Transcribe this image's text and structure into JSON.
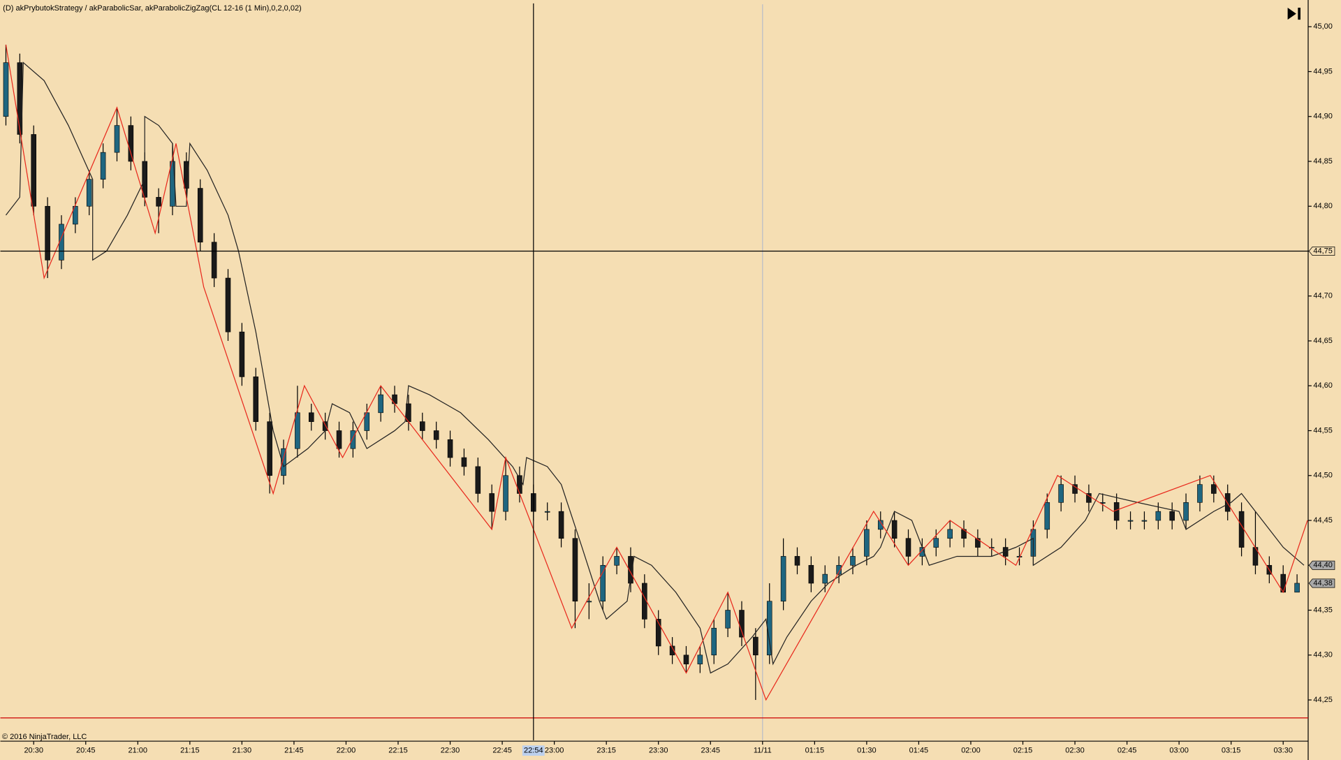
{
  "chart_data": {
    "type": "candlestick",
    "title": "(D) akPrybutokStrategy / akParabolicSar, akParabolicZigZag(CL 12-16 (1 Min),0,2,0,02)",
    "footer": "© 2016 NinjaTrader, LLC",
    "background": "#f5deb3",
    "up_color": "#1f6680",
    "down_color": "#1a1a1a",
    "xlim": [
      -9.6,
      367.2
    ],
    "ylim": [
      44.205,
      45.025
    ],
    "xticks": [
      {
        "value": 0,
        "label": "20:30"
      },
      {
        "value": 15,
        "label": "20:45"
      },
      {
        "value": 30,
        "label": "21:00"
      },
      {
        "value": 45,
        "label": "21:15"
      },
      {
        "value": 60,
        "label": "21:30"
      },
      {
        "value": 75,
        "label": "21:45"
      },
      {
        "value": 90,
        "label": "22:00"
      },
      {
        "value": 105,
        "label": "22:15"
      },
      {
        "value": 120,
        "label": "22:30"
      },
      {
        "value": 135,
        "label": "22:45"
      },
      {
        "value": 150,
        "label": "23:00"
      },
      {
        "value": 165,
        "label": "23:15"
      },
      {
        "value": 180,
        "label": "23:30"
      },
      {
        "value": 195,
        "label": "23:45"
      },
      {
        "value": 210,
        "label": "11/11"
      },
      {
        "value": 225,
        "label": "01:15"
      },
      {
        "value": 240,
        "label": "01:30"
      },
      {
        "value": 255,
        "label": "01:45"
      },
      {
        "value": 270,
        "label": "02:00"
      },
      {
        "value": 285,
        "label": "02:15"
      },
      {
        "value": 300,
        "label": "02:30"
      },
      {
        "value": 315,
        "label": "02:45"
      },
      {
        "value": 330,
        "label": "03:00"
      },
      {
        "value": 345,
        "label": "03:15"
      },
      {
        "value": 360,
        "label": "03:30"
      }
    ],
    "yticks": [
      {
        "value": 44.25,
        "label": "44,25"
      },
      {
        "value": 44.3,
        "label": "44,30"
      },
      {
        "value": 44.35,
        "label": "44,35"
      },
      {
        "value": 44.4,
        "label": "44,40"
      },
      {
        "value": 44.45,
        "label": "44,45"
      },
      {
        "value": 44.5,
        "label": "44,50"
      },
      {
        "value": 44.55,
        "label": "44,55"
      },
      {
        "value": 44.6,
        "label": "44,60"
      },
      {
        "value": 44.65,
        "label": "44,65"
      },
      {
        "value": 44.7,
        "label": "44,70"
      },
      {
        "value": 44.75,
        "label": "44,75"
      },
      {
        "value": 44.8,
        "label": "44,80"
      },
      {
        "value": 44.85,
        "label": "44,85"
      },
      {
        "value": 44.9,
        "label": "44,90"
      },
      {
        "value": 44.95,
        "label": "44,95"
      },
      {
        "value": 45.0,
        "label": "45,00"
      }
    ],
    "crosshair_x": {
      "value": 144,
      "label": "22:54"
    },
    "crosshair_y": {
      "value": 44.75,
      "label": "44,75"
    },
    "price_markers": [
      {
        "value": 44.4,
        "label": "44,40"
      },
      {
        "value": 44.38,
        "label": "44,38"
      }
    ],
    "session_break": 210,
    "stop_line": {
      "value": 44.23,
      "color": "#cc0000"
    },
    "candles": {
      "x": [
        -8,
        -4,
        0,
        4,
        8,
        12,
        16,
        20,
        24,
        28,
        32,
        36,
        40,
        44,
        48,
        52,
        56,
        60,
        64,
        68,
        72,
        76,
        80,
        84,
        88,
        92,
        96,
        100,
        104,
        108,
        112,
        116,
        120,
        124,
        128,
        132,
        136,
        140,
        144,
        148,
        152,
        156,
        160,
        164,
        168,
        172,
        176,
        180,
        184,
        188,
        192,
        196,
        200,
        204,
        208,
        212,
        216,
        220,
        224,
        228,
        232,
        236,
        240,
        244,
        248,
        252,
        256,
        260,
        264,
        268,
        272,
        276,
        280,
        284,
        288,
        292,
        296,
        300,
        304,
        308,
        312,
        316,
        320,
        324,
        328,
        332,
        336,
        340,
        344,
        348,
        352,
        356,
        360,
        364
      ],
      "open": [
        44.9,
        44.96,
        44.88,
        44.8,
        44.74,
        44.78,
        44.8,
        44.83,
        44.86,
        44.89,
        44.85,
        44.81,
        44.8,
        44.85,
        44.82,
        44.76,
        44.72,
        44.66,
        44.61,
        44.56,
        44.5,
        44.53,
        44.57,
        44.56,
        44.55,
        44.53,
        44.55,
        44.57,
        44.59,
        44.58,
        44.56,
        44.55,
        44.54,
        44.52,
        44.51,
        44.48,
        44.46,
        44.5,
        44.48,
        44.46,
        44.46,
        44.43,
        44.36,
        44.36,
        44.4,
        44.41,
        44.38,
        44.34,
        44.31,
        44.3,
        44.29,
        44.3,
        44.33,
        44.35,
        44.32,
        44.3,
        44.36,
        44.41,
        44.4,
        44.38,
        44.39,
        44.4,
        44.41,
        44.44,
        44.45,
        44.43,
        44.41,
        44.42,
        44.43,
        44.44,
        44.43,
        44.42,
        44.42,
        44.41,
        44.41,
        44.44,
        44.47,
        44.49,
        44.48,
        44.47,
        44.47,
        44.45,
        44.45,
        44.45,
        44.46,
        44.45,
        44.47,
        44.49,
        44.48,
        44.46,
        44.42,
        44.4,
        44.39,
        44.37
      ],
      "close": [
        44.96,
        44.88,
        44.8,
        44.74,
        44.78,
        44.8,
        44.83,
        44.86,
        44.89,
        44.85,
        44.81,
        44.8,
        44.85,
        44.82,
        44.76,
        44.72,
        44.66,
        44.61,
        44.56,
        44.5,
        44.53,
        44.57,
        44.56,
        44.55,
        44.53,
        44.55,
        44.57,
        44.59,
        44.58,
        44.56,
        44.55,
        44.54,
        44.52,
        44.51,
        44.48,
        44.46,
        44.5,
        44.48,
        44.46,
        44.46,
        44.43,
        44.36,
        44.36,
        44.4,
        44.41,
        44.38,
        44.34,
        44.31,
        44.3,
        44.29,
        44.3,
        44.33,
        44.35,
        44.32,
        44.3,
        44.36,
        44.41,
        44.4,
        44.38,
        44.39,
        44.4,
        44.41,
        44.44,
        44.45,
        44.43,
        44.41,
        44.42,
        44.43,
        44.44,
        44.43,
        44.42,
        44.42,
        44.41,
        44.41,
        44.44,
        44.47,
        44.49,
        44.48,
        44.47,
        44.47,
        44.45,
        44.45,
        44.45,
        44.46,
        44.45,
        44.47,
        44.49,
        44.48,
        44.46,
        44.42,
        44.4,
        44.39,
        44.37,
        44.38
      ],
      "high": [
        44.98,
        44.97,
        44.89,
        44.81,
        44.79,
        44.81,
        44.84,
        44.87,
        44.91,
        44.9,
        44.86,
        44.82,
        44.87,
        44.86,
        44.83,
        44.77,
        44.73,
        44.67,
        44.62,
        44.57,
        44.54,
        44.6,
        44.58,
        44.57,
        44.56,
        44.56,
        44.58,
        44.6,
        44.6,
        44.59,
        44.57,
        44.56,
        44.55,
        44.53,
        44.52,
        44.49,
        44.52,
        44.51,
        44.49,
        44.47,
        44.47,
        44.44,
        44.38,
        44.41,
        44.42,
        44.42,
        44.39,
        44.35,
        44.32,
        44.31,
        44.31,
        44.34,
        44.37,
        44.36,
        44.33,
        44.38,
        44.43,
        44.42,
        44.41,
        44.4,
        44.41,
        44.42,
        44.45,
        44.46,
        44.46,
        44.44,
        44.43,
        44.44,
        44.45,
        44.45,
        44.44,
        44.43,
        44.43,
        44.42,
        44.45,
        44.48,
        44.5,
        44.5,
        44.49,
        44.48,
        44.48,
        44.46,
        44.46,
        44.47,
        44.47,
        44.48,
        44.5,
        44.5,
        44.49,
        44.47,
        44.46,
        44.41,
        44.4,
        44.39
      ],
      "low": [
        44.89,
        44.87,
        44.79,
        44.72,
        44.73,
        44.77,
        44.79,
        44.82,
        44.85,
        44.84,
        44.8,
        44.77,
        44.79,
        44.81,
        44.75,
        44.71,
        44.65,
        44.6,
        44.55,
        44.48,
        44.49,
        44.52,
        44.55,
        44.54,
        44.52,
        44.52,
        44.54,
        44.56,
        44.57,
        44.55,
        44.54,
        44.53,
        44.51,
        44.5,
        44.47,
        44.44,
        44.45,
        44.47,
        44.45,
        44.45,
        44.42,
        44.33,
        44.34,
        44.35,
        44.39,
        44.37,
        44.33,
        44.3,
        44.29,
        44.28,
        44.28,
        44.29,
        44.32,
        44.31,
        44.25,
        44.29,
        44.35,
        44.39,
        44.37,
        44.37,
        44.38,
        44.39,
        44.4,
        44.43,
        44.42,
        44.4,
        44.4,
        44.41,
        44.42,
        44.42,
        44.41,
        44.41,
        44.4,
        44.4,
        44.4,
        44.43,
        44.46,
        44.47,
        44.46,
        44.46,
        44.44,
        44.44,
        44.44,
        44.44,
        44.44,
        44.44,
        44.46,
        44.47,
        44.45,
        44.41,
        44.39,
        44.38,
        44.37,
        44.37
      ]
    },
    "zigzag": {
      "color": "#e8281c",
      "x": [
        -8,
        3,
        24,
        35,
        41,
        49,
        69,
        78,
        89,
        100,
        132,
        136,
        155,
        168,
        188,
        200,
        211,
        242,
        252,
        264,
        283,
        295,
        311,
        339,
        360,
        367
      ],
      "values": [
        44.98,
        44.72,
        44.91,
        44.77,
        44.87,
        44.71,
        44.48,
        44.6,
        44.52,
        44.6,
        44.44,
        44.52,
        44.33,
        44.42,
        44.28,
        44.37,
        44.25,
        44.46,
        44.4,
        44.45,
        44.4,
        44.5,
        44.46,
        44.5,
        44.37,
        44.45
      ]
    },
    "sar": {
      "color": "#222222",
      "x": [
        -8,
        -4,
        -3,
        3,
        10,
        17,
        17,
        21,
        27,
        32,
        32,
        36,
        40,
        41,
        44,
        45,
        50,
        56,
        59,
        64,
        69,
        72,
        79,
        84,
        86,
        91,
        96,
        104,
        107,
        108,
        114,
        123,
        131,
        138,
        141,
        142,
        148,
        152,
        158,
        163,
        165,
        171,
        173,
        178,
        185,
        192,
        195,
        200,
        207,
        211,
        213,
        217,
        224,
        229,
        237,
        242,
        244,
        248,
        253,
        256,
        258,
        266,
        276,
        283,
        288,
        288,
        296,
        303,
        307,
        318,
        330,
        332,
        340,
        345,
        348,
        354,
        360,
        366
      ],
      "values": [
        44.79,
        44.81,
        44.96,
        44.94,
        44.89,
        44.83,
        44.74,
        44.75,
        44.79,
        44.83,
        44.9,
        44.89,
        44.87,
        44.8,
        44.8,
        44.87,
        44.84,
        44.79,
        44.75,
        44.66,
        44.55,
        44.51,
        44.53,
        44.55,
        44.58,
        44.57,
        44.53,
        44.55,
        44.56,
        44.6,
        44.59,
        44.57,
        44.54,
        44.51,
        44.49,
        44.52,
        44.51,
        44.49,
        44.42,
        44.36,
        44.34,
        44.36,
        44.41,
        44.4,
        44.37,
        44.33,
        44.28,
        44.29,
        44.32,
        44.34,
        44.29,
        44.32,
        44.36,
        44.38,
        44.4,
        44.41,
        44.42,
        44.46,
        44.45,
        44.42,
        44.4,
        44.41,
        44.41,
        44.42,
        44.43,
        44.4,
        44.42,
        44.45,
        44.48,
        44.47,
        44.46,
        44.44,
        44.46,
        44.47,
        44.48,
        44.45,
        44.42,
        44.4
      ]
    }
  }
}
